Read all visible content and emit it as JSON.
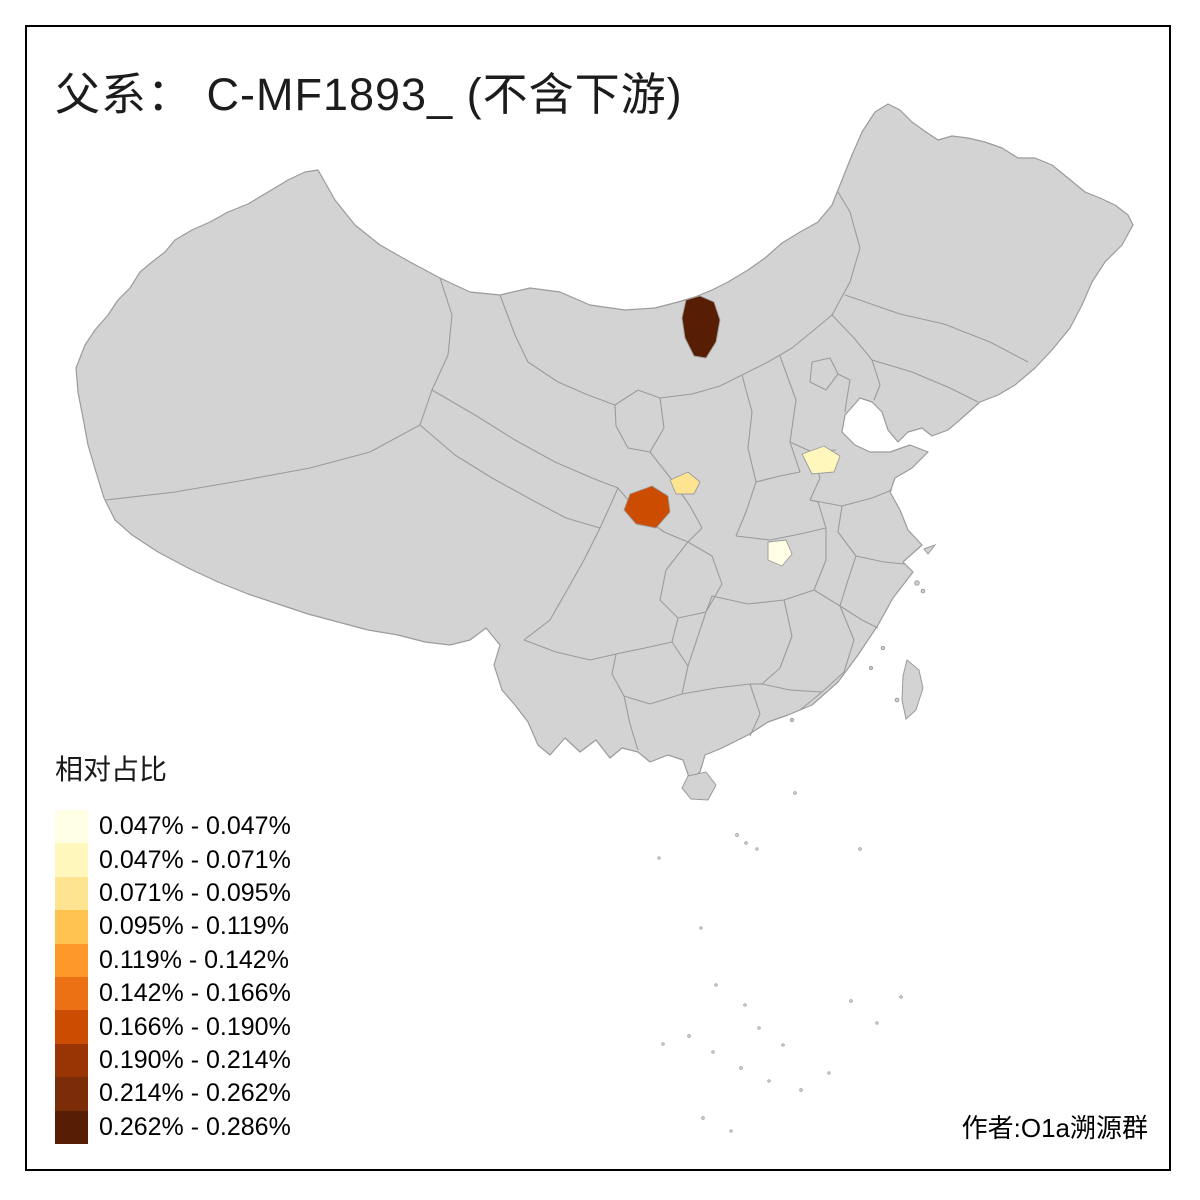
{
  "title": "父系： C-MF1893_ (不含下游)",
  "credit": "作者:O1a溯源群",
  "legend": {
    "title": "相对占比",
    "classes": [
      {
        "label": "0.047% - 0.047%",
        "color": "#FFFFE5"
      },
      {
        "label": "0.047% - 0.071%",
        "color": "#FFF7BC"
      },
      {
        "label": "0.071% - 0.095%",
        "color": "#FEE391"
      },
      {
        "label": "0.095% - 0.119%",
        "color": "#FEC44F"
      },
      {
        "label": "0.119% - 0.142%",
        "color": "#FE9929"
      },
      {
        "label": "0.142% - 0.166%",
        "color": "#EC7014"
      },
      {
        "label": "0.166% - 0.190%",
        "color": "#CC4C02"
      },
      {
        "label": "0.190% - 0.214%",
        "color": "#993404"
      },
      {
        "label": "0.214% - 0.262%",
        "color": "#7A2D06"
      },
      {
        "label": "0.262% - 0.286%",
        "color": "#571E04"
      }
    ]
  },
  "map": {
    "type": "choropleth",
    "land_color": "#D3D3D3",
    "boundary_color": "#9B9B9B",
    "background_color": "#FFFFFF",
    "highlighted_regions": [
      {
        "id": "north-inner-mongolia-region",
        "class_label": "0.262% - 0.286%",
        "color": "#571E04"
      },
      {
        "id": "south-gansu-region",
        "class_label": "0.166% - 0.190%",
        "color": "#CC4C02"
      },
      {
        "id": "central-gansu-region",
        "class_label": "0.071% - 0.095%",
        "color": "#FEE391"
      },
      {
        "id": "west-shandong-region",
        "class_label": "0.047% - 0.071%",
        "color": "#FFF7BC"
      },
      {
        "id": "central-hubei-region",
        "class_label": "0.047% - 0.047%",
        "color": "#FFFFE5"
      }
    ]
  }
}
